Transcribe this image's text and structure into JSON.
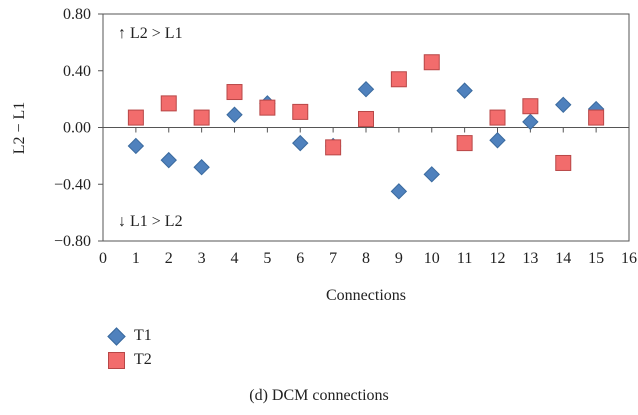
{
  "chart_data": {
    "type": "scatter",
    "title": "",
    "caption": "(d) DCM connections",
    "xlabel": "Connections",
    "ylabel": "L2 − L1",
    "xlim": [
      0,
      16
    ],
    "ylim": [
      -0.8,
      0.8
    ],
    "x_ticks": [
      "0",
      "1",
      "2",
      "3",
      "4",
      "5",
      "6",
      "7",
      "8",
      "9",
      "10",
      "11",
      "12",
      "13",
      "14",
      "15",
      "16"
    ],
    "y_ticks": [
      "0.80",
      "0.40",
      "0.00",
      "−0.40",
      "−0.80"
    ],
    "y_tick_values": [
      0.8,
      0.4,
      0.0,
      -0.4,
      -0.8
    ],
    "grid": false,
    "legend_position": "bottom-left",
    "annotations": {
      "top": "↑ L2 > L1",
      "bottom": "↓ L1 > L2"
    },
    "x": [
      1,
      2,
      3,
      4,
      5,
      6,
      7,
      8,
      9,
      10,
      11,
      12,
      13,
      14,
      15
    ],
    "series": [
      {
        "name": "T1",
        "marker": "diamond",
        "color": "#4F81BD",
        "values": [
          -0.13,
          -0.23,
          -0.28,
          0.09,
          0.17,
          -0.11,
          -0.13,
          0.27,
          -0.45,
          -0.33,
          0.26,
          -0.09,
          0.04,
          0.16,
          0.13
        ]
      },
      {
        "name": "T2",
        "marker": "square",
        "color": "#F26C6C",
        "values": [
          0.07,
          0.17,
          0.07,
          0.25,
          0.14,
          0.11,
          -0.14,
          0.06,
          0.34,
          0.46,
          -0.11,
          0.07,
          0.15,
          -0.25,
          0.07
        ]
      }
    ]
  }
}
